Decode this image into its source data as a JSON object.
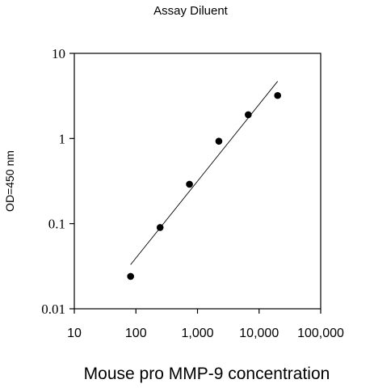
{
  "chart_data": {
    "type": "scatter",
    "title": "Assay Diluent",
    "xlabel": "Mouse pro MMP-9 concentration",
    "ylabel": "OD=450 nm",
    "x_scale": "log",
    "y_scale": "log",
    "xlim": [
      10,
      100000
    ],
    "ylim": [
      0.01,
      10
    ],
    "x_ticks": [
      {
        "value": 10,
        "label": "10"
      },
      {
        "value": 100,
        "label": "100"
      },
      {
        "value": 1000,
        "label": "1,000"
      },
      {
        "value": 10000,
        "label": "10,000"
      },
      {
        "value": 100000,
        "label": "100,000"
      }
    ],
    "y_ticks": [
      {
        "value": 0.01,
        "label": "0.01"
      },
      {
        "value": 0.1,
        "label": "0.1"
      },
      {
        "value": 1,
        "label": "1"
      },
      {
        "value": 10,
        "label": "10"
      }
    ],
    "grid": false,
    "series": [
      {
        "points": [
          {
            "x": 82,
            "y": 0.024
          },
          {
            "x": 247,
            "y": 0.09
          },
          {
            "x": 741,
            "y": 0.29
          },
          {
            "x": 2222,
            "y": 0.93
          },
          {
            "x": 6667,
            "y": 1.9
          },
          {
            "x": 20000,
            "y": 3.2
          }
        ]
      }
    ],
    "fit_line": {
      "points": [
        {
          "x": 82,
          "y": 0.033
        },
        {
          "x": 20000,
          "y": 4.7
        }
      ]
    },
    "colors": {
      "points": "#000000",
      "line": "#000000",
      "axes": "#000000"
    }
  }
}
